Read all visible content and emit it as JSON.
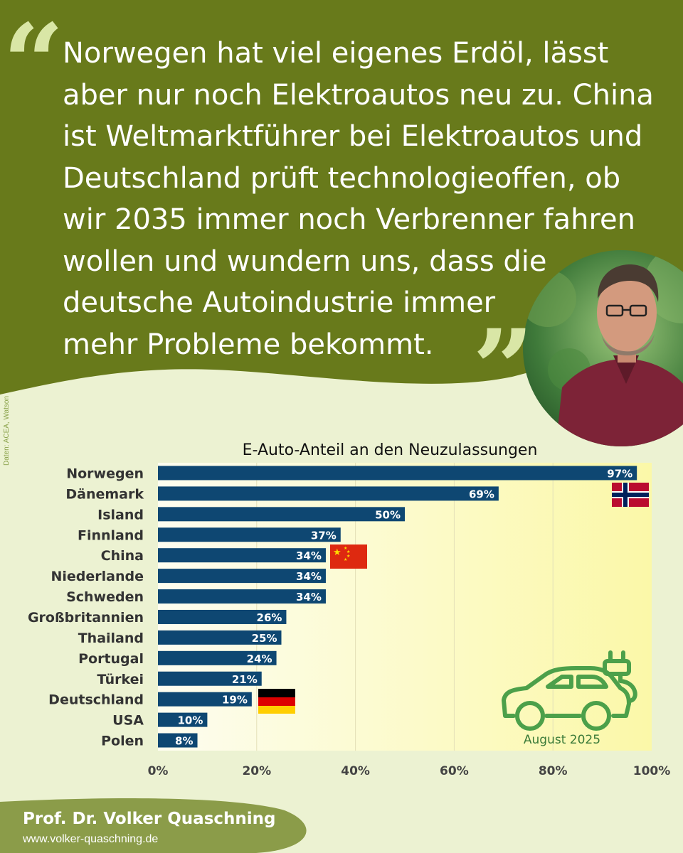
{
  "quote": {
    "open_mark": "“",
    "close_mark": "”",
    "lines": [
      "Norwegen hat viel eigenes Erdöl, lässt",
      "aber nur noch Elektroautos neu zu. China",
      "ist Weltmarktführer bei Elektroautos und",
      "Deutschland prüft technologieoffen, ob",
      "wir 2035 immer noch Verbrenner fahren",
      "wollen und wundern uns, dass die",
      "deutsche Autoindustrie immer",
      "mehr Probleme bekommt."
    ]
  },
  "source_note": "Daten: ACEA, Watson",
  "chart_data": {
    "type": "bar",
    "orientation": "horizontal",
    "title": "E-Auto-Anteil an den Neuzulassungen",
    "categories": [
      "Norwegen",
      "Dänemark",
      "Island",
      "Finnland",
      "China",
      "Niederlande",
      "Schweden",
      "Großbritannien",
      "Thailand",
      "Portugal",
      "Türkei",
      "Deutschland",
      "USA",
      "Polen"
    ],
    "values": [
      97,
      69,
      50,
      37,
      34,
      34,
      34,
      26,
      25,
      24,
      21,
      19,
      10,
      8
    ],
    "value_labels": [
      "97%",
      "69%",
      "50%",
      "37%",
      "34%",
      "34%",
      "34%",
      "26%",
      "25%",
      "24%",
      "21%",
      "19%",
      "10%",
      "8%"
    ],
    "xlim": [
      0,
      100
    ],
    "x_ticks": [
      "0%",
      "20%",
      "40%",
      "60%",
      "80%",
      "100%"
    ],
    "grid": true,
    "annotation": "August 2025",
    "flags": [
      "Norwegen",
      "China",
      "Deutschland"
    ],
    "colors": {
      "bar": "#0e4772",
      "plot_bg": "#fcfac2",
      "grid": "#e3e0b8"
    }
  },
  "footer": {
    "name": "Prof. Dr. Volker Quaschning",
    "url": "www.volker-quaschning.de"
  },
  "colors": {
    "header": "#687a1b",
    "page_bg": "#ecf2d2",
    "footer": "#8b9c49",
    "quote_marks": "#d9e6a6",
    "car_icon": "#4ca04a"
  }
}
